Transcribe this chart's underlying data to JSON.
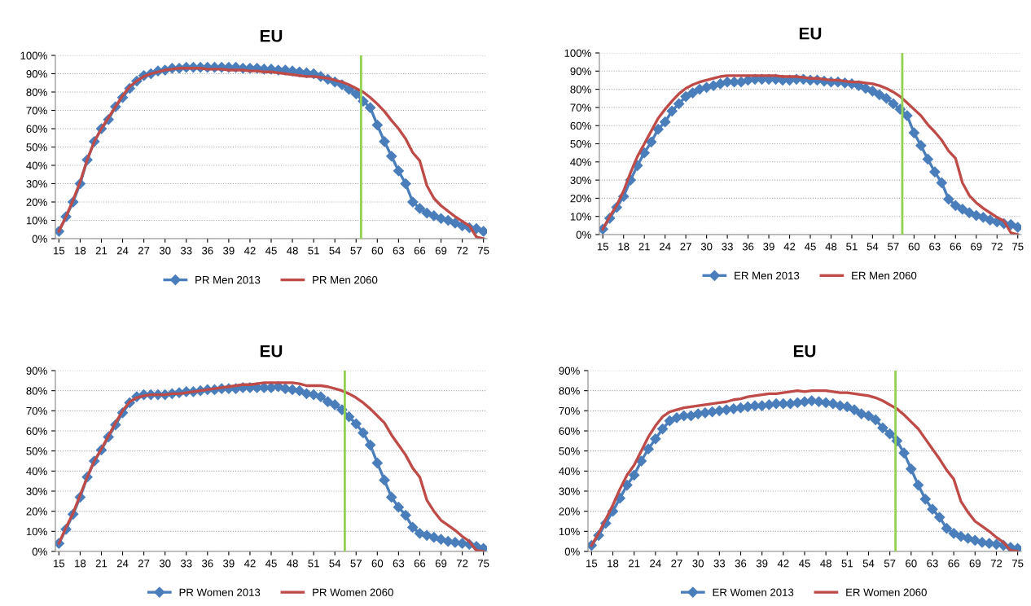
{
  "chart_data": [
    {
      "type": "line",
      "title": "EU",
      "x": [
        15,
        16,
        17,
        18,
        19,
        20,
        21,
        22,
        23,
        24,
        25,
        26,
        27,
        28,
        29,
        30,
        31,
        32,
        33,
        34,
        35,
        36,
        37,
        38,
        39,
        40,
        41,
        42,
        43,
        44,
        45,
        46,
        47,
        48,
        49,
        50,
        51,
        52,
        53,
        54,
        55,
        56,
        57,
        58,
        59,
        60,
        61,
        62,
        63,
        64,
        65,
        66,
        67,
        68,
        69,
        70,
        71,
        72,
        73,
        74,
        75
      ],
      "xlim": [
        14.5,
        75.5
      ],
      "xticks": [
        15,
        18,
        21,
        24,
        27,
        30,
        33,
        36,
        39,
        42,
        45,
        48,
        51,
        54,
        57,
        60,
        63,
        66,
        69,
        72,
        75
      ],
      "ylim": [
        0,
        100
      ],
      "yticks": [
        {
          "value": 0,
          "label": "0%"
        },
        {
          "value": 10,
          "label": "10%"
        },
        {
          "value": 20,
          "label": "20%"
        },
        {
          "value": 30,
          "label": "30%"
        },
        {
          "value": 40,
          "label": "40%"
        },
        {
          "value": 50,
          "label": "50%"
        },
        {
          "value": 60,
          "label": "60%"
        },
        {
          "value": 70,
          "label": "70%"
        },
        {
          "value": 80,
          "label": "80%"
        },
        {
          "value": 90,
          "label": "90%"
        },
        {
          "value": 100,
          "label": "100%"
        }
      ],
      "grid": "y",
      "legend": "bottom",
      "ref_lines": [
        {
          "axis": "x",
          "value": 57.7,
          "color": "#92d050"
        }
      ],
      "series": [
        {
          "name": "PR Men 2013",
          "color": "#4a7ebb",
          "marker": "diamond",
          "values": [
            4,
            12,
            20,
            30,
            43,
            53,
            60,
            65,
            72,
            77,
            82,
            86,
            89,
            90,
            91.5,
            92,
            93,
            93,
            93.5,
            93.5,
            93.5,
            93.5,
            93.5,
            93.5,
            93.5,
            93.5,
            93,
            93,
            93,
            92.5,
            92.5,
            92,
            92,
            91.5,
            91,
            90.5,
            90,
            88.5,
            87,
            85.5,
            84,
            81.5,
            79,
            75,
            71.5,
            62,
            53,
            45,
            37,
            30,
            20,
            16.5,
            14,
            12.5,
            11,
            10,
            8.5,
            7,
            6,
            5.5,
            4
          ]
        },
        {
          "name": "PR Men 2060",
          "color": "#be4b48",
          "marker": "none",
          "values": [
            4,
            12,
            21,
            31,
            43,
            53,
            60,
            66,
            72,
            78,
            83,
            86,
            88.5,
            90,
            91,
            92,
            92.5,
            93,
            93,
            93,
            93,
            92.5,
            92.5,
            92.5,
            92,
            92,
            92,
            91.5,
            91.5,
            91,
            91,
            90.5,
            90,
            89.5,
            89,
            88.5,
            88.5,
            88,
            87.5,
            86.5,
            85.5,
            84,
            82,
            80,
            77,
            73.5,
            69.5,
            64.5,
            60,
            54.5,
            47,
            42.5,
            29,
            22,
            18,
            15,
            12,
            9.5,
            7,
            1,
            0
          ]
        }
      ]
    },
    {
      "type": "line",
      "title": "EU",
      "x": [
        15,
        16,
        17,
        18,
        19,
        20,
        21,
        22,
        23,
        24,
        25,
        26,
        27,
        28,
        29,
        30,
        31,
        32,
        33,
        34,
        35,
        36,
        37,
        38,
        39,
        40,
        41,
        42,
        43,
        44,
        45,
        46,
        47,
        48,
        49,
        50,
        51,
        52,
        53,
        54,
        55,
        56,
        57,
        58,
        59,
        60,
        61,
        62,
        63,
        64,
        65,
        66,
        67,
        68,
        69,
        70,
        71,
        72,
        73,
        74,
        75
      ],
      "xlim": [
        14.5,
        75.5
      ],
      "xticks": [
        15,
        18,
        21,
        24,
        27,
        30,
        33,
        36,
        39,
        42,
        45,
        48,
        51,
        54,
        57,
        60,
        63,
        66,
        69,
        72,
        75
      ],
      "ylim": [
        0,
        100
      ],
      "yticks": [
        {
          "value": 0,
          "label": "0%"
        },
        {
          "value": 10,
          "label": "10%"
        },
        {
          "value": 20,
          "label": "20%"
        },
        {
          "value": 30,
          "label": "30%"
        },
        {
          "value": 40,
          "label": "40%"
        },
        {
          "value": 50,
          "label": "50%"
        },
        {
          "value": 60,
          "label": "60%"
        },
        {
          "value": 70,
          "label": "70%"
        },
        {
          "value": 80,
          "label": "80%"
        },
        {
          "value": 90,
          "label": "90%"
        },
        {
          "value": 100,
          "label": "100%"
        }
      ],
      "grid": "y",
      "legend": "bottom",
      "ref_lines": [
        {
          "axis": "x",
          "value": 58.3,
          "color": "#92d050"
        }
      ],
      "series": [
        {
          "name": "ER Men 2013",
          "color": "#4a7ebb",
          "marker": "diamond",
          "values": [
            3,
            9,
            15,
            21,
            30,
            38,
            45,
            51,
            58,
            62,
            68,
            72,
            76,
            78,
            80,
            81,
            82,
            83,
            84,
            84,
            84,
            85,
            85.5,
            85.5,
            85.5,
            85.5,
            85,
            85,
            85.5,
            85.5,
            85,
            85,
            84.5,
            84,
            84,
            83.5,
            83,
            82,
            80.5,
            79,
            77,
            75,
            72,
            69,
            65.5,
            56,
            49,
            41.5,
            34.5,
            28.5,
            19.5,
            16,
            14,
            12,
            10.5,
            9.5,
            8,
            7,
            6,
            5.5,
            4
          ]
        },
        {
          "name": "ER Men 2060",
          "color": "#be4b48",
          "marker": "none",
          "values": [
            3,
            10,
            16,
            24,
            34,
            43,
            50,
            57,
            64,
            69,
            73.5,
            77.5,
            80.5,
            82.5,
            84,
            85,
            86,
            87,
            87.5,
            87.5,
            87.5,
            87.5,
            87.5,
            87.5,
            87.5,
            87.5,
            87,
            87,
            87,
            86.5,
            86,
            86,
            85.5,
            85,
            85,
            84.5,
            84,
            84,
            83.5,
            83,
            82,
            80.5,
            78.5,
            76,
            72.5,
            69,
            65.5,
            60.5,
            56.5,
            52,
            46,
            42,
            28.5,
            21.5,
            17.5,
            14.5,
            12,
            9.5,
            7.5,
            1,
            0
          ]
        }
      ]
    },
    {
      "type": "line",
      "title": "EU",
      "x": [
        15,
        16,
        17,
        18,
        19,
        20,
        21,
        22,
        23,
        24,
        25,
        26,
        27,
        28,
        29,
        30,
        31,
        32,
        33,
        34,
        35,
        36,
        37,
        38,
        39,
        40,
        41,
        42,
        43,
        44,
        45,
        46,
        47,
        48,
        49,
        50,
        51,
        52,
        53,
        54,
        55,
        56,
        57,
        58,
        59,
        60,
        61,
        62,
        63,
        64,
        65,
        66,
        67,
        68,
        69,
        70,
        71,
        72,
        73,
        74,
        75
      ],
      "xlim": [
        14.5,
        75.5
      ],
      "xticks": [
        15,
        18,
        21,
        24,
        27,
        30,
        33,
        36,
        39,
        42,
        45,
        48,
        51,
        54,
        57,
        60,
        63,
        66,
        69,
        72,
        75
      ],
      "ylim": [
        0,
        90
      ],
      "yticks": [
        {
          "value": 0,
          "label": "0%"
        },
        {
          "value": 10,
          "label": "10%"
        },
        {
          "value": 20,
          "label": "20%"
        },
        {
          "value": 30,
          "label": "30%"
        },
        {
          "value": 40,
          "label": "40%"
        },
        {
          "value": 50,
          "label": "50%"
        },
        {
          "value": 60,
          "label": "60%"
        },
        {
          "value": 70,
          "label": "70%"
        },
        {
          "value": 80,
          "label": "80%"
        },
        {
          "value": 90,
          "label": "90%"
        }
      ],
      "grid": "y",
      "legend": "bottom",
      "ref_lines": [
        {
          "axis": "x",
          "value": 55.4,
          "color": "#92d050"
        }
      ],
      "series": [
        {
          "name": "PR Women 2013",
          "color": "#4a7ebb",
          "marker": "diamond",
          "values": [
            4,
            11,
            18.5,
            27,
            37,
            45,
            50.5,
            57,
            63,
            69,
            74,
            77,
            78,
            78,
            78,
            78,
            78.5,
            79,
            79.5,
            79.5,
            80,
            80.5,
            80.5,
            81,
            81,
            81,
            81.5,
            81.5,
            81.5,
            81.5,
            81.5,
            82,
            81,
            80.5,
            80,
            78.5,
            78,
            77,
            74.5,
            73,
            70.5,
            67,
            63.5,
            59,
            53,
            44,
            35.5,
            27,
            22,
            18,
            12,
            9,
            8,
            7,
            6,
            5,
            4.5,
            4,
            3.5,
            2.5,
            1.5
          ]
        },
        {
          "name": "PR Women 2060",
          "color": "#be4b48",
          "marker": "none",
          "values": [
            4,
            12,
            19,
            28,
            37,
            45,
            51,
            57.5,
            64,
            70,
            74.5,
            76.5,
            77.5,
            78,
            78,
            78,
            78.5,
            78.5,
            79,
            79.5,
            80,
            80.5,
            81,
            81.5,
            82,
            82.5,
            83,
            83,
            83.5,
            84,
            84,
            84,
            84,
            84,
            83.5,
            82.5,
            82.5,
            82.5,
            82,
            81,
            80,
            78.5,
            76.5,
            74,
            71,
            67.5,
            64,
            58,
            53,
            48,
            41.5,
            37,
            25.5,
            20,
            15.5,
            13,
            10.5,
            7.5,
            5,
            0.5,
            0
          ]
        }
      ]
    },
    {
      "type": "line",
      "title": "EU",
      "x": [
        15,
        16,
        17,
        18,
        19,
        20,
        21,
        22,
        23,
        24,
        25,
        26,
        27,
        28,
        29,
        30,
        31,
        32,
        33,
        34,
        35,
        36,
        37,
        38,
        39,
        40,
        41,
        42,
        43,
        44,
        45,
        46,
        47,
        48,
        49,
        50,
        51,
        52,
        53,
        54,
        55,
        56,
        57,
        58,
        59,
        60,
        61,
        62,
        63,
        64,
        65,
        66,
        67,
        68,
        69,
        70,
        71,
        72,
        73,
        74,
        75
      ],
      "xlim": [
        14.5,
        75.5
      ],
      "xticks": [
        15,
        18,
        21,
        24,
        27,
        30,
        33,
        36,
        39,
        42,
        45,
        48,
        51,
        54,
        57,
        60,
        63,
        66,
        69,
        72,
        75
      ],
      "ylim": [
        0,
        90
      ],
      "yticks": [
        {
          "value": 0,
          "label": "0%"
        },
        {
          "value": 10,
          "label": "10%"
        },
        {
          "value": 20,
          "label": "20%"
        },
        {
          "value": 30,
          "label": "30%"
        },
        {
          "value": 40,
          "label": "40%"
        },
        {
          "value": 50,
          "label": "50%"
        },
        {
          "value": 60,
          "label": "60%"
        },
        {
          "value": 70,
          "label": "70%"
        },
        {
          "value": 80,
          "label": "80%"
        },
        {
          "value": 90,
          "label": "90%"
        }
      ],
      "grid": "y",
      "legend": "bottom",
      "ref_lines": [
        {
          "axis": "x",
          "value": 57.8,
          "color": "#92d050"
        }
      ],
      "series": [
        {
          "name": "ER Women 2013",
          "color": "#4a7ebb",
          "marker": "diamond",
          "values": [
            3,
            8,
            14,
            20,
            26.5,
            33,
            38,
            45,
            51,
            56,
            61,
            65,
            66.5,
            67.5,
            67.5,
            68.5,
            69,
            69.5,
            70,
            70.5,
            71,
            71.5,
            72,
            72.5,
            72.5,
            73,
            73.5,
            73.5,
            73.5,
            74,
            74.5,
            75,
            74.5,
            74,
            73.5,
            72.5,
            72,
            70.5,
            68.5,
            67.5,
            65.5,
            61.5,
            58.5,
            55,
            49,
            41,
            33,
            26,
            21,
            17,
            11.5,
            9,
            7.5,
            6.5,
            5.5,
            4.5,
            4,
            3.5,
            3,
            2,
            1.5
          ]
        },
        {
          "name": "ER Women 2060",
          "color": "#be4b48",
          "marker": "none",
          "values": [
            3,
            9,
            16,
            23,
            31,
            38,
            43,
            50,
            57,
            62.5,
            67,
            69.5,
            70.5,
            71.5,
            72,
            72.5,
            73,
            73.5,
            74,
            74.5,
            75.5,
            76,
            77,
            77.5,
            78,
            78.5,
            78.5,
            79,
            79.5,
            80,
            79.5,
            80,
            80,
            80,
            79.5,
            79,
            79,
            78.5,
            78,
            77.5,
            76.5,
            75,
            73,
            71,
            68,
            64.5,
            61,
            56,
            51,
            46,
            40.5,
            36,
            25,
            19.5,
            15,
            12.5,
            10,
            7,
            4.5,
            0.5,
            0
          ]
        }
      ]
    }
  ]
}
